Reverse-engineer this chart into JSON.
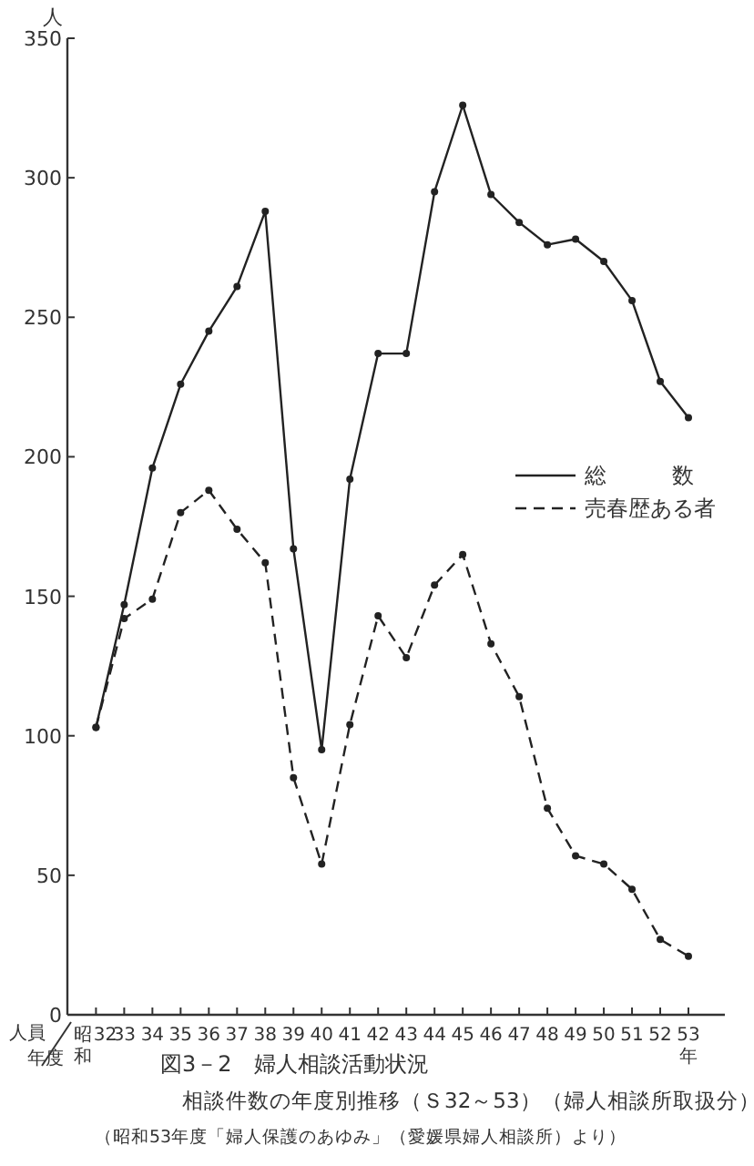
{
  "chart_data": {
    "type": "line",
    "title": "図3－2　婦人相談活動状況",
    "subtitle": "相談件数の年度別推移（Ｓ32～53）（婦人相談所取扱分）",
    "annotations": [
      "（昭和53年度「婦人保護のあゆみ」（愛媛県婦人相談所）より）",
      "人員"
    ],
    "xlabel": "年度",
    "ylabel": "人",
    "categories": [
      "昭和32",
      "33",
      "34",
      "35",
      "36",
      "37",
      "38",
      "39",
      "40",
      "41",
      "42",
      "43",
      "44",
      "45",
      "46",
      "47",
      "48",
      "49",
      "50",
      "51",
      "52",
      "53年"
    ],
    "series": [
      {
        "name": "総　　　数",
        "color": "#222222",
        "line_style": "solid",
        "values": [
          103,
          147,
          196,
          226,
          245,
          261,
          288,
          167,
          95,
          192,
          237,
          237,
          295,
          326,
          294,
          284,
          276,
          278,
          270,
          256,
          227,
          214
        ]
      },
      {
        "name": "売春歴ある者",
        "color": "#222222",
        "line_style": "dashed",
        "values": [
          103,
          142,
          149,
          180,
          188,
          174,
          162,
          85,
          54,
          104,
          143,
          128,
          154,
          165,
          133,
          114,
          74,
          57,
          54,
          45,
          27,
          21
        ]
      }
    ],
    "ylim": [
      0,
      350
    ],
    "yticks": [
      0,
      50,
      100,
      150,
      200,
      250,
      300,
      350
    ],
    "marker": "circle",
    "legend": "right"
  }
}
